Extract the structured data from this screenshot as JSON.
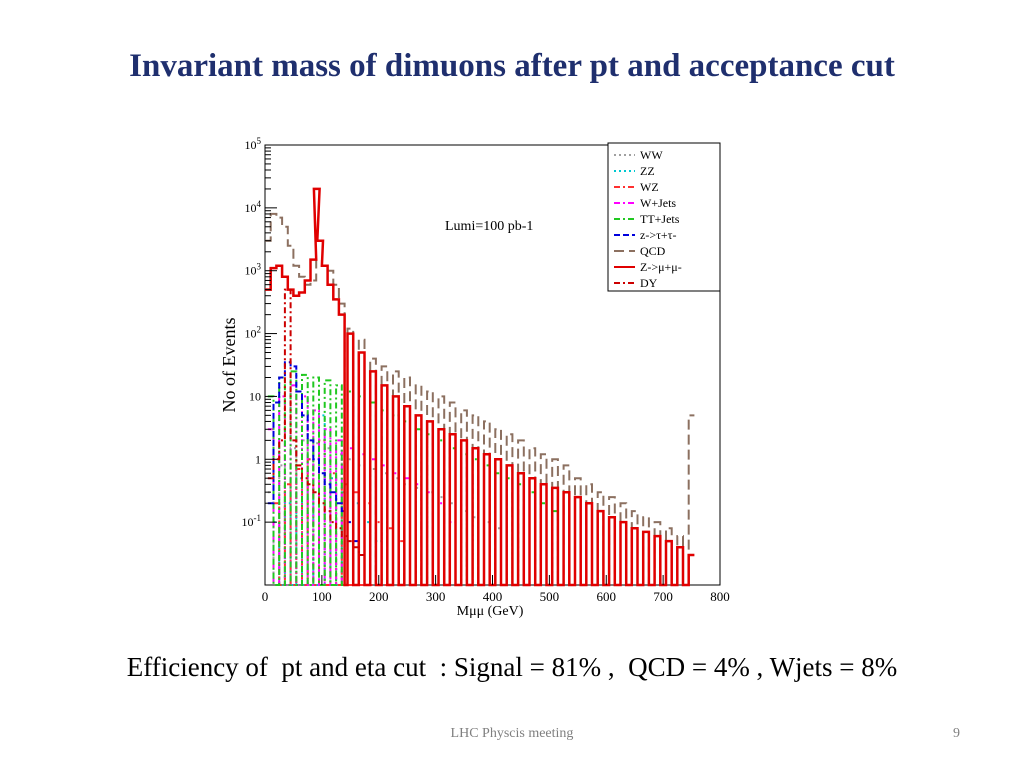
{
  "slide": {
    "title": "Invariant mass of dimuons after pt and acceptance cut",
    "efficiency_text": "Efficiency of  pt and eta cut  : Signal = 81% ,  QCD = 4% , Wjets = 8%",
    "footer": "LHC Physcis meeting",
    "page_number": "9"
  },
  "chart_data": {
    "type": "line",
    "title": "",
    "xlabel": "Mμμ (GeV)",
    "ylabel": "No of Events",
    "annotation": "Lumi=100 pb-1",
    "xlim": [
      0,
      800
    ],
    "ylim": [
      0.01,
      100000
    ],
    "yscale": "log",
    "grid": false,
    "legend_position": "top-right",
    "x_ticks": [
      "0",
      "100",
      "200",
      "300",
      "400",
      "500",
      "600",
      "700",
      "800"
    ],
    "y_ticks": [
      "10-1",
      "1",
      "10",
      "102",
      "103",
      "104",
      "105"
    ],
    "series": [
      {
        "name": "WW",
        "color": "#a0a0a0",
        "dash": "dotted",
        "x": [
          10,
          30,
          50,
          70,
          90,
          110,
          130,
          150,
          170,
          190,
          210,
          230,
          250,
          270,
          290,
          310,
          330,
          350,
          370,
          390,
          410
        ],
        "y": [
          0.3,
          0.8,
          1.5,
          2,
          1.8,
          1.5,
          1.2,
          1,
          0.8,
          0.7,
          0.6,
          0.5,
          0.4,
          0.35,
          0.3,
          0.25,
          0.2,
          0.15,
          0.12,
          0.1,
          0.08
        ]
      },
      {
        "name": "ZZ",
        "color": "#00c8d0",
        "dash": "dotted",
        "x": [
          20,
          40,
          60,
          80,
          100,
          120,
          140,
          160,
          180,
          200
        ],
        "y": [
          0.1,
          0.2,
          0.5,
          1,
          5,
          0.5,
          0.3,
          0.2,
          0.1,
          0.05
        ]
      },
      {
        "name": "WZ",
        "color": "#ff3030",
        "dash": "dashdot",
        "x": [
          20,
          40,
          60,
          80,
          100,
          120,
          140,
          160,
          180,
          200,
          220,
          240
        ],
        "y": [
          0.2,
          0.4,
          0.7,
          1,
          2,
          0.6,
          0.4,
          0.3,
          0.2,
          0.1,
          0.08,
          0.05
        ]
      },
      {
        "name": "W+Jets",
        "color": "#ff00ff",
        "dash": "dashdot",
        "x": [
          10,
          30,
          50,
          70,
          90,
          110,
          130,
          150,
          170,
          190,
          210,
          230,
          250,
          270,
          290,
          310,
          330
        ],
        "y": [
          3,
          10,
          15,
          10,
          6,
          3,
          2,
          1.5,
          1.2,
          1,
          0.8,
          0.6,
          0.5,
          0.4,
          0.3,
          0.2,
          0.1
        ]
      },
      {
        "name": "TT+Jets",
        "color": "#20c820",
        "dash": "dashdot",
        "x": [
          10,
          30,
          50,
          70,
          90,
          110,
          130,
          150,
          170,
          190,
          210,
          230,
          250,
          270,
          290,
          310,
          330,
          350,
          370,
          390,
          410,
          430,
          450,
          470,
          490,
          510
        ],
        "y": [
          10,
          20,
          25,
          22,
          20,
          18,
          15,
          12,
          10,
          8,
          6,
          5,
          4,
          3,
          2.5,
          2,
          1.5,
          1.2,
          1,
          0.8,
          0.6,
          0.5,
          0.4,
          0.3,
          0.2,
          0.15
        ]
      },
      {
        "name": "z->τ+τ-",
        "color": "#0000dd",
        "dash": "dashed",
        "x": [
          10,
          20,
          30,
          40,
          50,
          60,
          70,
          80,
          90,
          100,
          110,
          120,
          130,
          140,
          150,
          160
        ],
        "y": [
          0.2,
          8,
          20,
          35,
          30,
          12,
          5,
          2,
          1,
          0.6,
          0.4,
          0.3,
          0.2,
          0.15,
          0.1,
          0.05
        ]
      },
      {
        "name": "QCD",
        "color": "#8c7060",
        "dash": "longdash",
        "x": [
          5,
          15,
          25,
          35,
          45,
          55,
          65,
          75,
          85,
          95,
          105,
          115,
          125,
          135,
          150,
          170,
          190,
          210,
          230,
          250,
          270,
          290,
          310,
          330,
          350,
          370,
          390,
          410,
          430,
          450,
          470,
          490,
          510,
          530,
          550,
          570,
          590,
          610,
          630,
          650,
          670,
          690,
          710,
          730,
          750
        ],
        "y": [
          3000,
          8000,
          7000,
          5000,
          2500,
          1200,
          800,
          600,
          700,
          1500,
          1200,
          1000,
          600,
          300,
          120,
          80,
          40,
          30,
          25,
          20,
          15,
          12,
          10,
          8,
          6,
          5,
          4,
          3,
          2.5,
          2,
          1.5,
          1.2,
          1,
          0.8,
          0.5,
          0.4,
          0.3,
          0.25,
          0.2,
          0.15,
          0.12,
          0.1,
          0.08,
          0.06,
          5
        ]
      },
      {
        "name": "Z->μ+μ-",
        "color": "#e00000",
        "dash": "solid",
        "x": [
          5,
          15,
          25,
          35,
          45,
          55,
          65,
          75,
          85,
          91,
          97,
          105,
          115,
          125,
          135,
          150,
          170,
          190,
          210,
          230,
          250,
          270,
          290,
          310,
          330,
          350,
          370,
          390,
          410,
          430,
          450,
          470,
          490,
          510,
          530,
          550,
          570,
          590,
          610,
          630,
          650,
          670,
          690,
          710,
          730,
          750
        ],
        "y": [
          500,
          1100,
          1200,
          800,
          500,
          400,
          450,
          700,
          1500,
          20000,
          3000,
          1200,
          600,
          350,
          200,
          100,
          50,
          25,
          15,
          10,
          7,
          5,
          4,
          3,
          2.5,
          2,
          1.5,
          1.2,
          1,
          0.8,
          0.6,
          0.5,
          0.4,
          0.35,
          0.3,
          0.25,
          0.2,
          0.15,
          0.12,
          0.1,
          0.08,
          0.07,
          0.06,
          0.05,
          0.04,
          0.03
        ]
      },
      {
        "name": "DY",
        "color": "#cc0000",
        "dash": "dashdot",
        "x": [
          10,
          20,
          30,
          40,
          50,
          60,
          70,
          80,
          90,
          100,
          110,
          120,
          130,
          140,
          150,
          160,
          170
        ],
        "y": [
          0.5,
          1,
          2,
          500,
          2,
          0.8,
          0.5,
          0.4,
          0.3,
          0.2,
          0.15,
          0.1,
          0.08,
          0.06,
          0.05,
          0.04,
          0.03
        ]
      }
    ]
  }
}
